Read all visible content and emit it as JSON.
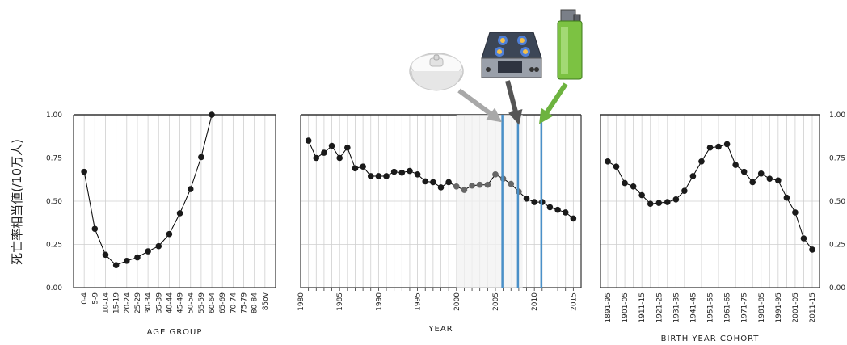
{
  "y_axis_label": "死亡率相当値(/10万人)",
  "y_ticks": [
    "0.00",
    "0.25",
    "0.50",
    "0.75",
    "1.00"
  ],
  "colors": {
    "line": "#000000",
    "point": "#1a1a1a",
    "marker_lines": "#4a90c8"
  },
  "chart_data": [
    {
      "type": "line",
      "xlabel": "AGE GROUP",
      "ylabel": "死亡率相当値(/10万人)",
      "ylim": [
        0,
        1
      ],
      "y_ticks_side": "left",
      "grid": true,
      "categories": [
        "0-4",
        "5-9",
        "10-14",
        "15-19",
        "20-24",
        "25-29",
        "30-34",
        "35-39",
        "40-44",
        "45-49",
        "50-54",
        "55-59",
        "60-64",
        "65-69",
        "70-74",
        "75-79",
        "80-84",
        "85ov"
      ],
      "values": [
        0.67,
        0.34,
        0.19,
        0.13,
        0.155,
        0.175,
        0.21,
        0.24,
        0.31,
        0.43,
        0.57,
        0.755,
        1.0,
        null,
        null,
        null,
        null,
        null
      ]
    },
    {
      "type": "line",
      "xlabel": "YEAR",
      "ylim": [
        0,
        1
      ],
      "grid": true,
      "x": [
        1981,
        1982,
        1983,
        1984,
        1985,
        1986,
        1987,
        1988,
        1989,
        1990,
        1991,
        1992,
        1993,
        1994,
        1995,
        1996,
        1997,
        1998,
        1999,
        2000,
        2001,
        2002,
        2003,
        2004,
        2005,
        2006,
        2007,
        2008,
        2009,
        2010,
        2011,
        2012,
        2013,
        2014,
        2015
      ],
      "values": [
        0.85,
        0.75,
        0.78,
        0.82,
        0.75,
        0.81,
        0.69,
        0.7,
        0.645,
        0.645,
        0.645,
        0.67,
        0.665,
        0.675,
        0.655,
        0.615,
        0.61,
        0.58,
        0.61,
        0.585,
        0.565,
        0.59,
        0.595,
        0.595,
        0.655,
        0.63,
        0.6,
        0.555,
        0.515,
        0.495,
        0.495,
        0.465,
        0.45,
        0.435,
        0.4
      ],
      "x_tick_labels": [
        "1980",
        "1985",
        "1990",
        "1995",
        "2000",
        "2005",
        "2010",
        "2015"
      ],
      "event_lines": [
        2006,
        2008,
        2011
      ],
      "event_icons": [
        "smoke-detector",
        "gas-stove",
        "lighter"
      ]
    },
    {
      "type": "line",
      "xlabel": "BIRTH YEAR COHORT",
      "ylim": [
        0,
        1
      ],
      "y_ticks_side": "right",
      "grid": true,
      "categories": [
        "1891-95",
        "1896-00",
        "1901-05",
        "1906-10",
        "1911-15",
        "1916-20",
        "1921-25",
        "1926-30",
        "1931-35",
        "1936-40",
        "1941-45",
        "1946-50",
        "1951-55",
        "1956-60",
        "1961-65",
        "1966-70",
        "1971-75",
        "1976-80",
        "1981-85",
        "1986-90",
        "1991-95",
        "1996-00",
        "2001-05",
        "2006-10",
        "2011-15"
      ],
      "x_tick_labels": [
        "1891-95",
        "1901-05",
        "1911-15",
        "1921-25",
        "1931-35",
        "1941-45",
        "1951-55",
        "1961-65",
        "1971-75",
        "1981-85",
        "1991-95",
        "2001-05",
        "2011-15"
      ],
      "values": [
        0.73,
        0.7,
        0.605,
        0.585,
        0.535,
        0.485,
        0.49,
        0.495,
        0.51,
        0.56,
        0.645,
        0.73,
        0.81,
        0.815,
        0.83,
        0.71,
        0.67,
        0.61,
        0.66,
        0.63,
        0.62,
        0.52,
        0.435,
        0.285,
        0.22
      ]
    }
  ]
}
